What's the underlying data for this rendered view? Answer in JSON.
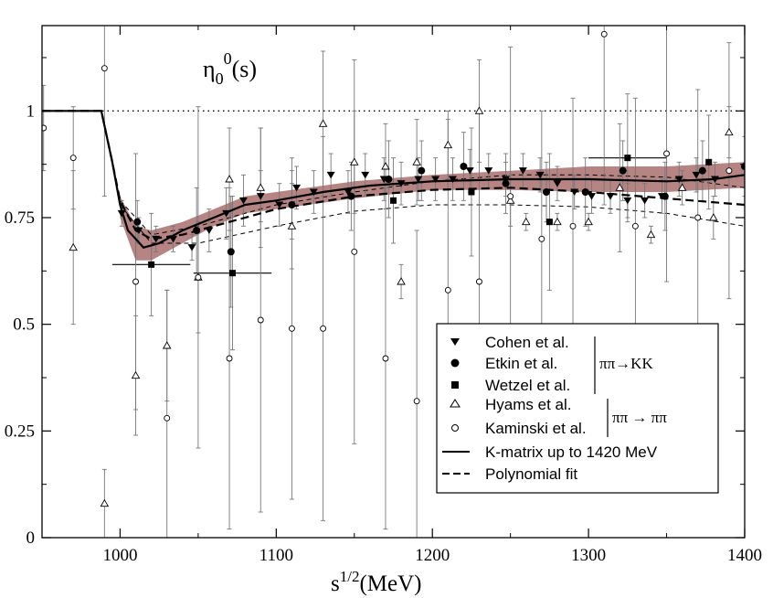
{
  "chart_data": {
    "type": "scatter",
    "title_main": "η",
    "title_sub": "0",
    "title_sup": "0",
    "title_rest": "(s)",
    "xlabel_main": "s",
    "xlabel_sup": "1/2",
    "xlabel_rest": "(MeV)",
    "ylabel": "",
    "xlim": [
      950,
      1400
    ],
    "ylim": [
      0,
      1.2
    ],
    "x_ticks": [
      1000,
      1100,
      1200,
      1300,
      1400
    ],
    "y_ticks": [
      0,
      0.25,
      0.5,
      0.75,
      1
    ],
    "x_tick_labels": [
      "1000",
      "1100",
      "1200",
      "1300",
      "1400"
    ],
    "y_tick_labels": [
      "0",
      "0.25",
      "0.5",
      "0.75",
      "1"
    ],
    "reference_line_y": 1,
    "legend_position": "bottom-right",
    "legend": [
      {
        "label": "Cohen et al.",
        "marker": "triangle-down-filled"
      },
      {
        "label": "Etkin et al.",
        "marker": "circle-filled"
      },
      {
        "label": "Wetzel et al.",
        "marker": "square-filled"
      },
      {
        "label": "Hyams et al.",
        "marker": "triangle-up-open"
      },
      {
        "label": "Kaminski et al.",
        "marker": "circle-open"
      },
      {
        "label": "K-matrix up to 1420 MeV",
        "marker": "solid-line"
      },
      {
        "label": "Polynomial fit",
        "marker": "dashed-line"
      }
    ],
    "process_labels": [
      "ππ→KK",
      "ππ → ππ"
    ],
    "series": [
      {
        "name": "Cohen et al.",
        "marker": "triangle-down-filled",
        "points": [
          {
            "x": 1001,
            "y": 0.76,
            "yerr": 0.03
          },
          {
            "x": 1012,
            "y": 0.72,
            "yerr": 0.03
          },
          {
            "x": 1023,
            "y": 0.7,
            "yerr": 0.03
          },
          {
            "x": 1034,
            "y": 0.7,
            "yerr": 0.03
          },
          {
            "x": 1046,
            "y": 0.68,
            "yerr": 0.03
          },
          {
            "x": 1057,
            "y": 0.72,
            "yerr": 0.05
          },
          {
            "x": 1068,
            "y": 0.76,
            "yerr": 0.06
          },
          {
            "x": 1079,
            "y": 0.79,
            "yerr": 0.06
          },
          {
            "x": 1090,
            "y": 0.8,
            "yerr": 0.06
          },
          {
            "x": 1102,
            "y": 0.78,
            "yerr": 0.05
          },
          {
            "x": 1113,
            "y": 0.82,
            "yerr": 0.05
          },
          {
            "x": 1124,
            "y": 0.81,
            "yerr": 0.05
          },
          {
            "x": 1135,
            "y": 0.85,
            "yerr": 0.05
          },
          {
            "x": 1146,
            "y": 0.81,
            "yerr": 0.05
          },
          {
            "x": 1157,
            "y": 0.85,
            "yerr": 0.05
          },
          {
            "x": 1169,
            "y": 0.84,
            "yerr": 0.05
          },
          {
            "x": 1180,
            "y": 0.83,
            "yerr": 0.05
          },
          {
            "x": 1191,
            "y": 0.84,
            "yerr": 0.05
          },
          {
            "x": 1202,
            "y": 0.84,
            "yerr": 0.05
          },
          {
            "x": 1213,
            "y": 0.84,
            "yerr": 0.05
          },
          {
            "x": 1224,
            "y": 0.86,
            "yerr": 0.05
          },
          {
            "x": 1236,
            "y": 0.86,
            "yerr": 0.04
          },
          {
            "x": 1247,
            "y": 0.84,
            "yerr": 0.04
          },
          {
            "x": 1258,
            "y": 0.86,
            "yerr": 0.04
          },
          {
            "x": 1269,
            "y": 0.85,
            "yerr": 0.04
          },
          {
            "x": 1280,
            "y": 0.83,
            "yerr": 0.04
          },
          {
            "x": 1291,
            "y": 0.81,
            "yerr": 0.04
          },
          {
            "x": 1302,
            "y": 0.8,
            "yerr": 0.04
          },
          {
            "x": 1314,
            "y": 0.8,
            "yerr": 0.04
          },
          {
            "x": 1325,
            "y": 0.79,
            "yerr": 0.04
          },
          {
            "x": 1336,
            "y": 0.79,
            "yerr": 0.04
          },
          {
            "x": 1347,
            "y": 0.8,
            "yerr": 0.04
          },
          {
            "x": 1358,
            "y": 0.84,
            "yerr": 0.04
          },
          {
            "x": 1369,
            "y": 0.85,
            "yerr": 0.04
          },
          {
            "x": 1381,
            "y": 0.84,
            "yerr": 0.04
          }
        ]
      },
      {
        "name": "Etkin et al.",
        "marker": "circle-filled",
        "points": [
          {
            "x": 1011,
            "y": 0.74,
            "yerr": 0.05
          },
          {
            "x": 1049,
            "y": 0.72,
            "yerr": 0.1
          },
          {
            "x": 1071,
            "y": 0.67,
            "yerr": 0.13
          },
          {
            "x": 1110,
            "y": 0.78,
            "yerr": 0.08
          },
          {
            "x": 1148,
            "y": 0.8,
            "yerr": 0.08
          },
          {
            "x": 1172,
            "y": 0.84,
            "yerr": 0.09
          },
          {
            "x": 1193,
            "y": 0.86,
            "yerr": 0.07
          },
          {
            "x": 1220,
            "y": 0.87,
            "yerr": 0.08
          },
          {
            "x": 1247,
            "y": 0.83,
            "yerr": 0.07
          },
          {
            "x": 1273,
            "y": 0.81,
            "yerr": 0.07
          },
          {
            "x": 1298,
            "y": 0.81,
            "yerr": 0.08
          },
          {
            "x": 1322,
            "y": 0.86,
            "yerr": 0.07
          },
          {
            "x": 1349,
            "y": 0.8,
            "yerr": 0.08
          },
          {
            "x": 1373,
            "y": 0.86,
            "yerr": 0.07
          },
          {
            "x": 1400,
            "y": 0.87,
            "yerr": 0.07
          }
        ]
      },
      {
        "name": "Wetzel et al.",
        "marker": "square-filled",
        "points": [
          {
            "x": 1020,
            "y": 0.64,
            "yerr": 0.12,
            "xerr": 25
          },
          {
            "x": 1072,
            "y": 0.62,
            "yerr": 0.18,
            "xerr": 25
          },
          {
            "x": 1175,
            "y": 0.79,
            "yerr": 0.1
          },
          {
            "x": 1225,
            "y": 0.81,
            "yerr": 0.15
          },
          {
            "x": 1275,
            "y": 0.74,
            "yerr": 0.16
          },
          {
            "x": 1325,
            "y": 0.89,
            "yerr": 0.15,
            "xerr": 25
          },
          {
            "x": 1377,
            "y": 0.88,
            "yerr": 0.11
          }
        ]
      },
      {
        "name": "Hyams et al.",
        "marker": "triangle-up-open",
        "points": [
          {
            "x": 970,
            "y": 0.68,
            "yerr": 0.18
          },
          {
            "x": 990,
            "y": 0.08,
            "yerr": 0.08
          },
          {
            "x": 1010,
            "y": 0.38,
            "yerr": 0.14
          },
          {
            "x": 1030,
            "y": 0.45,
            "yerr": 0.13
          },
          {
            "x": 1050,
            "y": 0.61,
            "yerr": 0.13
          },
          {
            "x": 1070,
            "y": 0.84,
            "yerr": 0.12
          },
          {
            "x": 1090,
            "y": 0.82,
            "yerr": 0.14
          },
          {
            "x": 1110,
            "y": 0.73,
            "yerr": 0.1
          },
          {
            "x": 1130,
            "y": 0.97,
            "yerr": 0.17
          },
          {
            "x": 1150,
            "y": 0.88,
            "yerr": 0.12
          },
          {
            "x": 1170,
            "y": 0.87,
            "yerr": 0.1
          },
          {
            "x": 1180,
            "y": 0.6,
            "yerr": 0.04
          },
          {
            "x": 1190,
            "y": 0.88,
            "yerr": 0.1
          },
          {
            "x": 1210,
            "y": 0.92,
            "yerr": 0.08
          },
          {
            "x": 1230,
            "y": 1.0,
            "yerr": 0.12
          },
          {
            "x": 1250,
            "y": 0.79,
            "yerr": 0.06
          },
          {
            "x": 1260,
            "y": 0.74,
            "yerr": 0.02
          },
          {
            "x": 1280,
            "y": 0.74,
            "yerr": 0.02
          },
          {
            "x": 1300,
            "y": 0.74,
            "yerr": 0.02
          },
          {
            "x": 1320,
            "y": 0.82,
            "yerr": 0.15
          },
          {
            "x": 1340,
            "y": 0.71,
            "yerr": 0.02
          },
          {
            "x": 1360,
            "y": 0.82,
            "yerr": 0.04
          },
          {
            "x": 1380,
            "y": 0.75,
            "yerr": 0.05
          },
          {
            "x": 1390,
            "y": 0.95,
            "yerr": 0.06
          }
        ]
      },
      {
        "name": "Kaminski et al.",
        "marker": "circle-open",
        "points": [
          {
            "x": 951,
            "y": 0.96,
            "yerr": 0.1
          },
          {
            "x": 970,
            "y": 0.89,
            "yerr": 0.12
          },
          {
            "x": 990,
            "y": 1.1,
            "yerr": 0.3
          },
          {
            "x": 1010,
            "y": 0.6,
            "yerr": 0.3
          },
          {
            "x": 1030,
            "y": 0.28,
            "yerr": 0.3
          },
          {
            "x": 1050,
            "y": 0.61,
            "yerr": 0.4
          },
          {
            "x": 1070,
            "y": 0.42,
            "yerr": 0.4
          },
          {
            "x": 1090,
            "y": 0.51,
            "yerr": 0.45
          },
          {
            "x": 1110,
            "y": 0.49,
            "yerr": 0.4
          },
          {
            "x": 1130,
            "y": 0.49,
            "yerr": 0.45
          },
          {
            "x": 1150,
            "y": 0.67,
            "yerr": 0.45
          },
          {
            "x": 1170,
            "y": 0.42,
            "yerr": 0.4
          },
          {
            "x": 1190,
            "y": 0.32,
            "yerr": 0.4
          },
          {
            "x": 1210,
            "y": 0.58,
            "yerr": 0.4
          },
          {
            "x": 1230,
            "y": 0.6,
            "yerr": 0.4
          },
          {
            "x": 1250,
            "y": 0.8,
            "yerr": 0.35
          },
          {
            "x": 1270,
            "y": 0.7,
            "yerr": 0.3
          },
          {
            "x": 1290,
            "y": 0.73,
            "yerr": 0.3
          },
          {
            "x": 1310,
            "y": 1.18,
            "yerr": 0.4
          },
          {
            "x": 1330,
            "y": 0.73,
            "yerr": 0.3
          },
          {
            "x": 1350,
            "y": 0.9,
            "yerr": 0.3
          },
          {
            "x": 1370,
            "y": 0.75,
            "yerr": 0.3
          },
          {
            "x": 1390,
            "y": 0.86,
            "yerr": 0.3
          }
        ]
      },
      {
        "name": "K-matrix up to 1420 MeV",
        "line": "solid",
        "points": [
          {
            "x": 950,
            "y": 1.0
          },
          {
            "x": 988,
            "y": 1.0
          },
          {
            "x": 995,
            "y": 0.88
          },
          {
            "x": 1000,
            "y": 0.78
          },
          {
            "x": 1005,
            "y": 0.72
          },
          {
            "x": 1015,
            "y": 0.68
          },
          {
            "x": 1025,
            "y": 0.69
          },
          {
            "x": 1040,
            "y": 0.72
          },
          {
            "x": 1060,
            "y": 0.75
          },
          {
            "x": 1080,
            "y": 0.78
          },
          {
            "x": 1100,
            "y": 0.79
          },
          {
            "x": 1130,
            "y": 0.81
          },
          {
            "x": 1160,
            "y": 0.825
          },
          {
            "x": 1200,
            "y": 0.835
          },
          {
            "x": 1250,
            "y": 0.84
          },
          {
            "x": 1300,
            "y": 0.84
          },
          {
            "x": 1350,
            "y": 0.835
          },
          {
            "x": 1380,
            "y": 0.84
          },
          {
            "x": 1400,
            "y": 0.85
          }
        ]
      },
      {
        "name": "Polynomial fit",
        "line": "dashed",
        "points": [
          {
            "x": 950,
            "y": 1.0
          },
          {
            "x": 988,
            "y": 1.0
          },
          {
            "x": 995,
            "y": 0.88
          },
          {
            "x": 1000,
            "y": 0.79
          },
          {
            "x": 1010,
            "y": 0.72
          },
          {
            "x": 1020,
            "y": 0.7
          },
          {
            "x": 1040,
            "y": 0.71
          },
          {
            "x": 1070,
            "y": 0.74
          },
          {
            "x": 1100,
            "y": 0.77
          },
          {
            "x": 1150,
            "y": 0.8
          },
          {
            "x": 1200,
            "y": 0.815
          },
          {
            "x": 1250,
            "y": 0.82
          },
          {
            "x": 1300,
            "y": 0.81
          },
          {
            "x": 1350,
            "y": 0.795
          },
          {
            "x": 1400,
            "y": 0.78
          }
        ]
      }
    ],
    "band": {
      "color": "#b58483",
      "upper": [
        {
          "x": 1000,
          "y": 0.8
        },
        {
          "x": 1010,
          "y": 0.73
        },
        {
          "x": 1020,
          "y": 0.72
        },
        {
          "x": 1040,
          "y": 0.74
        },
        {
          "x": 1060,
          "y": 0.77
        },
        {
          "x": 1080,
          "y": 0.8
        },
        {
          "x": 1100,
          "y": 0.81
        },
        {
          "x": 1150,
          "y": 0.835
        },
        {
          "x": 1200,
          "y": 0.85
        },
        {
          "x": 1250,
          "y": 0.86
        },
        {
          "x": 1300,
          "y": 0.87
        },
        {
          "x": 1350,
          "y": 0.87
        },
        {
          "x": 1400,
          "y": 0.88
        }
      ],
      "lower": [
        {
          "x": 1000,
          "y": 0.75
        },
        {
          "x": 1010,
          "y": 0.65
        },
        {
          "x": 1020,
          "y": 0.65
        },
        {
          "x": 1040,
          "y": 0.69
        },
        {
          "x": 1060,
          "y": 0.73
        },
        {
          "x": 1080,
          "y": 0.76
        },
        {
          "x": 1100,
          "y": 0.77
        },
        {
          "x": 1150,
          "y": 0.795
        },
        {
          "x": 1200,
          "y": 0.815
        },
        {
          "x": 1250,
          "y": 0.815
        },
        {
          "x": 1300,
          "y": 0.81
        },
        {
          "x": 1350,
          "y": 0.81
        },
        {
          "x": 1400,
          "y": 0.82
        }
      ]
    },
    "thin_dashed_curves": [
      [
        {
          "x": 1000,
          "y": 0.79
        },
        {
          "x": 1020,
          "y": 0.71
        },
        {
          "x": 1050,
          "y": 0.73
        },
        {
          "x": 1100,
          "y": 0.78
        },
        {
          "x": 1150,
          "y": 0.81
        },
        {
          "x": 1200,
          "y": 0.835
        },
        {
          "x": 1250,
          "y": 0.85
        },
        {
          "x": 1300,
          "y": 0.85
        },
        {
          "x": 1350,
          "y": 0.845
        },
        {
          "x": 1400,
          "y": 0.82
        }
      ],
      [
        {
          "x": 1000,
          "y": 0.78
        },
        {
          "x": 1020,
          "y": 0.69
        },
        {
          "x": 1050,
          "y": 0.69
        },
        {
          "x": 1100,
          "y": 0.73
        },
        {
          "x": 1150,
          "y": 0.765
        },
        {
          "x": 1200,
          "y": 0.78
        },
        {
          "x": 1250,
          "y": 0.78
        },
        {
          "x": 1300,
          "y": 0.775
        },
        {
          "x": 1350,
          "y": 0.76
        },
        {
          "x": 1400,
          "y": 0.73
        }
      ]
    ]
  }
}
